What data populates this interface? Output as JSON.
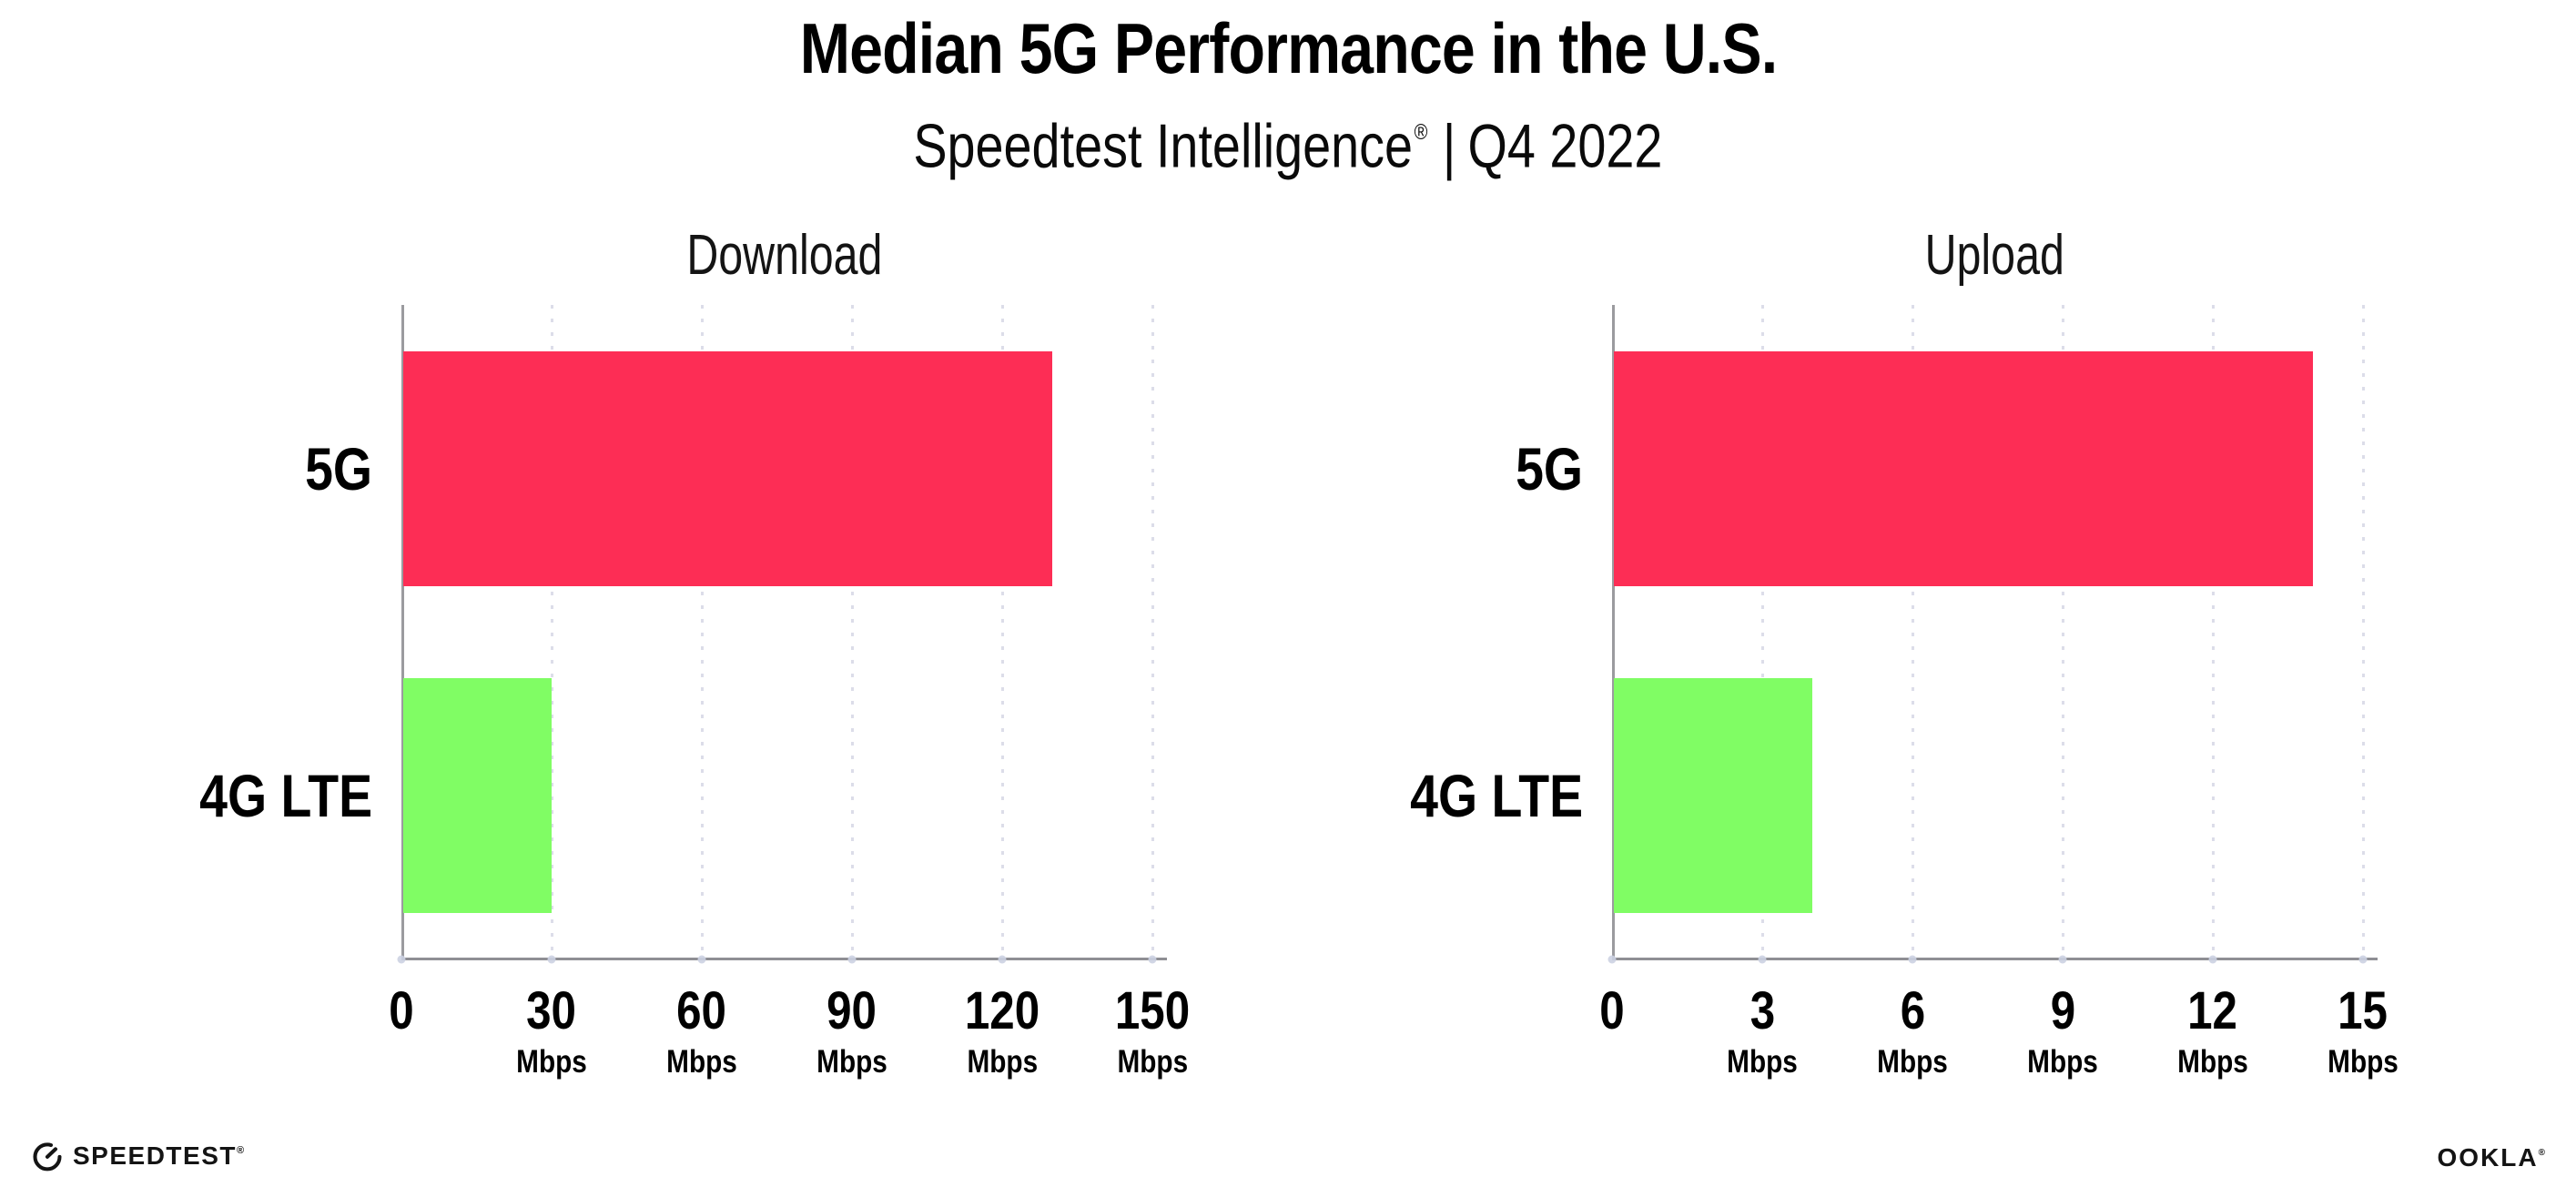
{
  "header": {
    "title": "Median 5G Performance in the U.S.",
    "subtitle_brand": "Speedtest Intelligence",
    "subtitle_registered": "®",
    "subtitle_separator": "|",
    "subtitle_period": "Q4 2022"
  },
  "chart_data": [
    {
      "type": "bar",
      "orientation": "horizontal",
      "title": "Download",
      "categories": [
        "5G",
        "4G LTE"
      ],
      "values": [
        130,
        30
      ],
      "unit": "Mbps",
      "xlim": [
        0,
        150
      ],
      "xticks": [
        0,
        30,
        60,
        90,
        120,
        150
      ],
      "tick_unit_label": "Mbps",
      "bar_colors": [
        "#FD2D55",
        "#80FD64"
      ],
      "grid": "vertical-dotted",
      "legend_position": "none"
    },
    {
      "type": "bar",
      "orientation": "horizontal",
      "title": "Upload",
      "categories": [
        "5G",
        "4G LTE"
      ],
      "values": [
        14,
        4
      ],
      "unit": "Mbps",
      "xlim": [
        0,
        15
      ],
      "xticks": [
        0,
        3,
        6,
        9,
        12,
        15
      ],
      "tick_unit_label": "Mbps",
      "bar_colors": [
        "#FD2D55",
        "#80FD64"
      ],
      "grid": "vertical-dotted",
      "legend_position": "none"
    }
  ],
  "footer": {
    "speedtest_label": "SPEEDTEST",
    "speedtest_registered": "®",
    "ookla_label": "OOKLA",
    "ookla_registered": "®"
  },
  "colors": {
    "bar_5g": "#FD2D55",
    "bar_4g_lte": "#80FD64",
    "gridline": "#DCDDE9",
    "y_axis_line": "#9B9B9F",
    "x_axis_line": "#8F8F94",
    "tick_dot": "#CCD2E2",
    "text": "#000000",
    "background": "#FFFFFF"
  }
}
